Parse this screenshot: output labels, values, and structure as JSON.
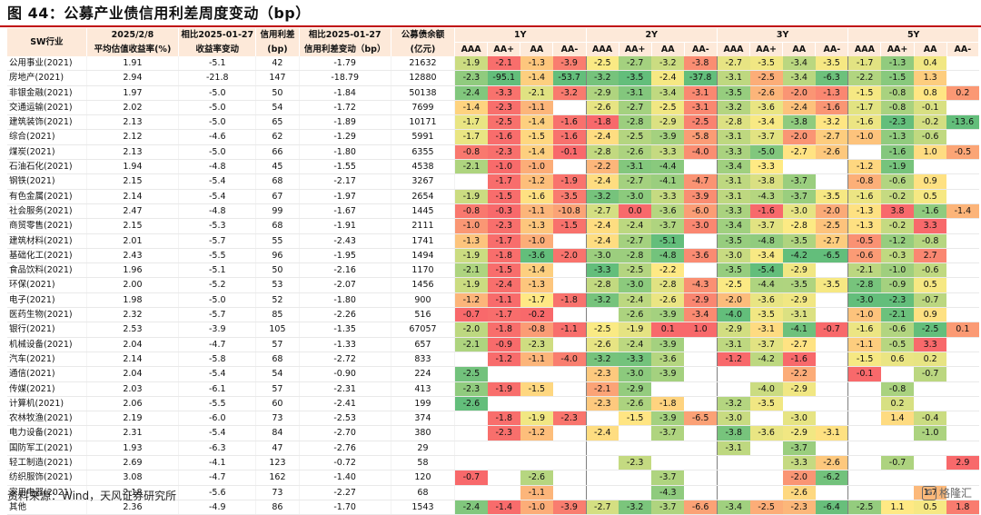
{
  "title": "图 44：公募产业债信用利差周度变动（bp）",
  "source": "资料来源：Wind，天风证券研究所",
  "watermark": "格隆汇",
  "colors": {
    "header_bg": "#fde9d9",
    "title_rule": "#c00000",
    "negative_strong": "#63be7b",
    "neutral": "#ffeb84",
    "positive_strong": "#f8696b"
  },
  "headers": {
    "industry": "SW行业",
    "col1": [
      "2025/2/8",
      "平均估值收益率(%)"
    ],
    "col2": [
      "相比2025-01-27",
      "收益率变动"
    ],
    "col3": [
      "信用利差",
      "(bp)"
    ],
    "col4": [
      "相比2025-01-27",
      "信用利差变动（bp）"
    ],
    "col5": [
      "公募债余额",
      "(亿元)"
    ],
    "tenors": [
      "1Y",
      "2Y",
      "3Y",
      "5Y"
    ],
    "ratings": [
      "AAA",
      "AA+",
      "AA",
      "AA-"
    ]
  },
  "rows": [
    {
      "name": "公用事业(2021)",
      "yield": "1.91",
      "yield_chg": "-5.1",
      "spread": "42",
      "spread_chg": "-1.79",
      "balance": "21632",
      "cells": [
        "-1.9",
        "-2.1",
        "-1.3",
        "-3.9",
        "-2.5",
        "-2.7",
        "-3.2",
        "-3.8",
        "-2.7",
        "-3.5",
        "-3.4",
        "-3.5",
        "-1.7",
        "-1.3",
        "0.4",
        ""
      ]
    },
    {
      "name": "房地产(2021)",
      "yield": "2.94",
      "yield_chg": "-21.8",
      "spread": "147",
      "spread_chg": "-18.79",
      "balance": "12880",
      "cells": [
        "-2.3",
        "-95.1",
        "-1.4",
        "-53.7",
        "-3.2",
        "-3.5",
        "-2.4",
        "-37.8",
        "-3.1",
        "-2.5",
        "-3.4",
        "-6.3",
        "-2.2",
        "-1.5",
        "1.3",
        ""
      ]
    },
    {
      "name": "非银金融(2021)",
      "yield": "1.97",
      "yield_chg": "-5.0",
      "spread": "50",
      "spread_chg": "-1.84",
      "balance": "50138",
      "cells": [
        "-2.4",
        "-3.3",
        "-2.1",
        "-3.2",
        "-2.9",
        "-3.1",
        "-3.4",
        "-3.1",
        "-3.5",
        "-2.6",
        "-2.0",
        "-1.3",
        "-1.5",
        "-0.8",
        "0.8",
        "0.2"
      ]
    },
    {
      "name": "交通运输(2021)",
      "yield": "2.02",
      "yield_chg": "-5.0",
      "spread": "54",
      "spread_chg": "-1.72",
      "balance": "7699",
      "cells": [
        "-1.4",
        "-2.3",
        "-1.1",
        "",
        "-2.6",
        "-2.7",
        "-2.5",
        "-3.1",
        "-3.2",
        "-3.6",
        "-2.4",
        "-1.6",
        "-1.7",
        "-0.8",
        "-0.1",
        ""
      ]
    },
    {
      "name": "建筑装饰(2021)",
      "yield": "2.13",
      "yield_chg": "-5.0",
      "spread": "65",
      "spread_chg": "-1.89",
      "balance": "10171",
      "cells": [
        "-1.7",
        "-2.5",
        "-1.4",
        "-1.6",
        "-1.8",
        "-2.8",
        "-2.9",
        "-2.5",
        "-2.8",
        "-3.4",
        "-3.8",
        "-3.2",
        "-1.6",
        "-2.3",
        "-0.2",
        "-13.6"
      ]
    },
    {
      "name": "综合(2021)",
      "yield": "2.12",
      "yield_chg": "-4.6",
      "spread": "62",
      "spread_chg": "-1.29",
      "balance": "5991",
      "cells": [
        "-1.7",
        "-1.6",
        "-1.5",
        "-1.6",
        "-2.4",
        "-2.5",
        "-3.9",
        "-5.8",
        "-3.1",
        "-3.7",
        "-2.0",
        "-2.7",
        "-1.0",
        "-1.3",
        "-0.6",
        ""
      ]
    },
    {
      "name": "煤炭(2021)",
      "yield": "2.13",
      "yield_chg": "-5.0",
      "spread": "66",
      "spread_chg": "-1.80",
      "balance": "6355",
      "cells": [
        "-0.8",
        "-2.3",
        "-1.4",
        "-0.1",
        "-2.8",
        "-2.6",
        "-3.3",
        "-4.0",
        "-3.3",
        "-5.0",
        "-2.7",
        "-2.6",
        "",
        "-1.6",
        "1.0",
        "-0.5"
      ]
    },
    {
      "name": "石油石化(2021)",
      "yield": "1.94",
      "yield_chg": "-4.8",
      "spread": "45",
      "spread_chg": "-1.55",
      "balance": "4538",
      "cells": [
        "-2.1",
        "-1.0",
        "-1.0",
        "",
        "-2.2",
        "-3.1",
        "-4.4",
        "",
        "-3.4",
        "-3.3",
        "",
        "",
        "-1.2",
        "-1.9",
        "",
        ""
      ]
    },
    {
      "name": "钢铁(2021)",
      "yield": "2.15",
      "yield_chg": "-5.4",
      "spread": "68",
      "spread_chg": "-2.17",
      "balance": "3267",
      "cells": [
        "",
        "-1.7",
        "-1.2",
        "-1.9",
        "-2.4",
        "-2.7",
        "-4.1",
        "-4.7",
        "-3.1",
        "-3.8",
        "-3.7",
        "",
        "-0.8",
        "-0.6",
        "0.9",
        ""
      ]
    },
    {
      "name": "有色金属(2021)",
      "yield": "2.14",
      "yield_chg": "-5.4",
      "spread": "67",
      "spread_chg": "-1.97",
      "balance": "2654",
      "cells": [
        "-1.9",
        "-1.5",
        "-1.6",
        "-3.5",
        "-3.2",
        "-3.0",
        "-3.3",
        "-3.9",
        "-3.1",
        "-4.3",
        "-3.7",
        "-3.5",
        "-1.6",
        "-0.2",
        "0.5",
        ""
      ]
    },
    {
      "name": "社会服务(2021)",
      "yield": "2.47",
      "yield_chg": "-4.8",
      "spread": "99",
      "spread_chg": "-1.67",
      "balance": "1445",
      "cells": [
        "-0.8",
        "-0.3",
        "-1.1",
        "-10.8",
        "-2.7",
        "0.0",
        "-3.6",
        "-6.0",
        "-3.3",
        "-1.6",
        "-3.0",
        "-2.0",
        "-1.3",
        "3.8",
        "-1.6",
        "-1.4"
      ]
    },
    {
      "name": "商贸零售(2021)",
      "yield": "2.15",
      "yield_chg": "-5.3",
      "spread": "68",
      "spread_chg": "-1.91",
      "balance": "2111",
      "cells": [
        "-1.0",
        "-2.3",
        "-1.3",
        "-1.5",
        "-2.4",
        "-2.4",
        "-3.7",
        "-3.0",
        "-3.4",
        "-3.7",
        "-2.8",
        "-2.5",
        "-1.3",
        "-0.2",
        "3.3",
        ""
      ]
    },
    {
      "name": "建筑材料(2021)",
      "yield": "2.01",
      "yield_chg": "-5.7",
      "spread": "55",
      "spread_chg": "-2.43",
      "balance": "1741",
      "cells": [
        "-1.3",
        "-1.7",
        "-1.0",
        "",
        "-2.4",
        "-2.7",
        "-5.1",
        "",
        "-3.5",
        "-4.8",
        "-3.5",
        "-2.7",
        "-0.5",
        "-1.2",
        "-0.8",
        ""
      ]
    },
    {
      "name": "基础化工(2021)",
      "yield": "2.43",
      "yield_chg": "-5.5",
      "spread": "96",
      "spread_chg": "-1.95",
      "balance": "1494",
      "cells": [
        "-1.9",
        "-1.8",
        "-3.6",
        "-2.0",
        "-3.0",
        "-2.8",
        "-4.8",
        "-3.6",
        "-3.0",
        "-3.4",
        "-4.2",
        "-6.5",
        "-0.6",
        "-0.3",
        "2.7",
        ""
      ]
    },
    {
      "name": "食品饮料(2021)",
      "yield": "1.96",
      "yield_chg": "-5.1",
      "spread": "50",
      "spread_chg": "-2.16",
      "balance": "1170",
      "cells": [
        "-2.1",
        "-1.5",
        "-1.4",
        "",
        "-3.3",
        "-2.5",
        "-2.2",
        "",
        "-3.5",
        "-5.4",
        "-2.9",
        "",
        "-2.1",
        "-1.0",
        "-0.6",
        ""
      ]
    },
    {
      "name": "环保(2021)",
      "yield": "2.00",
      "yield_chg": "-5.2",
      "spread": "53",
      "spread_chg": "-2.07",
      "balance": "1456",
      "cells": [
        "-1.9",
        "-2.4",
        "-1.3",
        "",
        "-2.8",
        "-3.0",
        "-2.8",
        "-4.3",
        "-2.5",
        "-4.4",
        "-3.5",
        "-3.5",
        "-2.8",
        "-0.9",
        "0.5",
        ""
      ]
    },
    {
      "name": "电子(2021)",
      "yield": "1.98",
      "yield_chg": "-5.0",
      "spread": "52",
      "spread_chg": "-1.80",
      "balance": "900",
      "cells": [
        "-1.2",
        "-1.1",
        "-1.7",
        "-1.8",
        "-3.2",
        "-2.4",
        "-2.6",
        "-2.9",
        "-2.0",
        "-3.6",
        "-2.9",
        "",
        "-3.0",
        "-2.3",
        "-0.7",
        ""
      ]
    },
    {
      "name": "医药生物(2021)",
      "yield": "2.32",
      "yield_chg": "-5.7",
      "spread": "85",
      "spread_chg": "-2.26",
      "balance": "516",
      "cells": [
        "-0.7",
        "-1.7",
        "-0.2",
        "",
        "",
        "-2.6",
        "-3.9",
        "-3.4",
        "-4.0",
        "-3.5",
        "-3.1",
        "",
        "-1.0",
        "-2.1",
        "0.9",
        ""
      ]
    },
    {
      "name": "银行(2021)",
      "yield": "2.53",
      "yield_chg": "-3.9",
      "spread": "105",
      "spread_chg": "-1.35",
      "balance": "67057",
      "cells": [
        "-2.0",
        "-1.8",
        "-0.8",
        "-1.1",
        "-2.5",
        "-1.9",
        "0.1",
        "1.0",
        "-2.9",
        "-3.1",
        "-4.1",
        "-0.7",
        "-1.6",
        "-0.6",
        "-2.5",
        "0.1"
      ]
    },
    {
      "name": "机械设备(2021)",
      "yield": "2.04",
      "yield_chg": "-4.7",
      "spread": "57",
      "spread_chg": "-1.33",
      "balance": "657",
      "cells": [
        "-2.1",
        "-0.9",
        "-2.3",
        "",
        "-2.6",
        "-2.4",
        "-3.9",
        "",
        "-3.1",
        "-3.7",
        "-2.7",
        "",
        "-1.1",
        "-0.5",
        "3.3",
        ""
      ]
    },
    {
      "name": "汽车(2021)",
      "yield": "2.14",
      "yield_chg": "-5.8",
      "spread": "68",
      "spread_chg": "-2.72",
      "balance": "833",
      "cells": [
        "",
        "-1.2",
        "-1.1",
        "-4.0",
        "-3.2",
        "-3.3",
        "-3.6",
        "",
        "-1.2",
        "-4.2",
        "-1.6",
        "",
        "-1.5",
        "0.6",
        "0.2",
        ""
      ]
    },
    {
      "name": "通信(2021)",
      "yield": "2.04",
      "yield_chg": "-5.4",
      "spread": "54",
      "spread_chg": "-0.90",
      "balance": "224",
      "cells": [
        "-2.5",
        "",
        "",
        "",
        "-2.3",
        "-3.0",
        "-3.9",
        "",
        "",
        "",
        "-2.2",
        "",
        "-0.1",
        "",
        "-0.7",
        ""
      ]
    },
    {
      "name": "传媒(2021)",
      "yield": "2.03",
      "yield_chg": "-6.1",
      "spread": "57",
      "spread_chg": "-2.31",
      "balance": "413",
      "cells": [
        "-2.3",
        "-1.9",
        "-1.5",
        "",
        "-2.1",
        "-2.9",
        "",
        "",
        "",
        "-4.0",
        "-2.9",
        "",
        "",
        "-0.8",
        "",
        ""
      ]
    },
    {
      "name": "计算机(2021)",
      "yield": "2.06",
      "yield_chg": "-5.5",
      "spread": "60",
      "spread_chg": "-2.41",
      "balance": "199",
      "cells": [
        "-2.6",
        "",
        "",
        "",
        "-2.3",
        "-2.6",
        "-1.8",
        "",
        "-3.2",
        "-3.5",
        "",
        "",
        "",
        "0.2",
        "",
        ""
      ]
    },
    {
      "name": "农林牧渔(2021)",
      "yield": "2.19",
      "yield_chg": "-6.0",
      "spread": "73",
      "spread_chg": "-2.53",
      "balance": "374",
      "cells": [
        "",
        "-1.8",
        "-1.9",
        "-2.3",
        "",
        "-1.5",
        "-3.9",
        "-6.5",
        "-3.0",
        "",
        "-3.0",
        "",
        "",
        "1.4",
        "-0.4",
        ""
      ]
    },
    {
      "name": "电力设备(2021)",
      "yield": "2.31",
      "yield_chg": "-5.4",
      "spread": "84",
      "spread_chg": "-2.70",
      "balance": "380",
      "cells": [
        "",
        "-2.3",
        "-1.2",
        "",
        "-2.4",
        "",
        "-3.7",
        "",
        "-3.8",
        "-3.6",
        "-2.9",
        "-3.1",
        "",
        "",
        "-1.0",
        ""
      ]
    },
    {
      "name": "国防军工(2021)",
      "yield": "1.93",
      "yield_chg": "-6.3",
      "spread": "47",
      "spread_chg": "-2.76",
      "balance": "29",
      "cells": [
        "",
        "",
        "",
        "",
        "",
        "",
        "",
        "",
        "-3.1",
        "",
        "-3.7",
        "",
        "",
        "",
        "",
        ""
      ]
    },
    {
      "name": "轻工制造(2021)",
      "yield": "2.69",
      "yield_chg": "-4.1",
      "spread": "123",
      "spread_chg": "-0.72",
      "balance": "58",
      "cells": [
        "",
        "",
        "",
        "",
        "",
        "-2.3",
        "",
        "",
        "",
        "",
        "-3.3",
        "-2.6",
        "",
        "-0.7",
        "",
        "2.9"
      ]
    },
    {
      "name": "纺织服饰(2021)",
      "yield": "3.08",
      "yield_chg": "-4.7",
      "spread": "162",
      "spread_chg": "-1.40",
      "balance": "120",
      "cells": [
        "-0.7",
        "",
        "-2.6",
        "",
        "",
        "",
        "-3.7",
        "",
        "",
        "",
        "-2.0",
        "-6.2",
        "",
        "",
        "",
        ""
      ]
    },
    {
      "name": "家用电器(2021)",
      "yield": "2.18",
      "yield_chg": "-5.6",
      "spread": "73",
      "spread_chg": "-2.27",
      "balance": "68",
      "cells": [
        "",
        "",
        "-1.1",
        "",
        "",
        "",
        "-4.3",
        "",
        "",
        "",
        "-2.6",
        "",
        "",
        "",
        "1.7",
        ""
      ]
    },
    {
      "name": "其他",
      "yield": "2.36",
      "yield_chg": "-4.9",
      "spread": "86",
      "spread_chg": "-1.70",
      "balance": "1543",
      "cells": [
        "-2.4",
        "-1.4",
        "-1.0",
        "-3.9",
        "-2.7",
        "-3.2",
        "-3.7",
        "-6.6",
        "-3.4",
        "-2.5",
        "-2.3",
        "-6.4",
        "-2.5",
        "1.1",
        "0.5",
        "1.8"
      ]
    }
  ]
}
